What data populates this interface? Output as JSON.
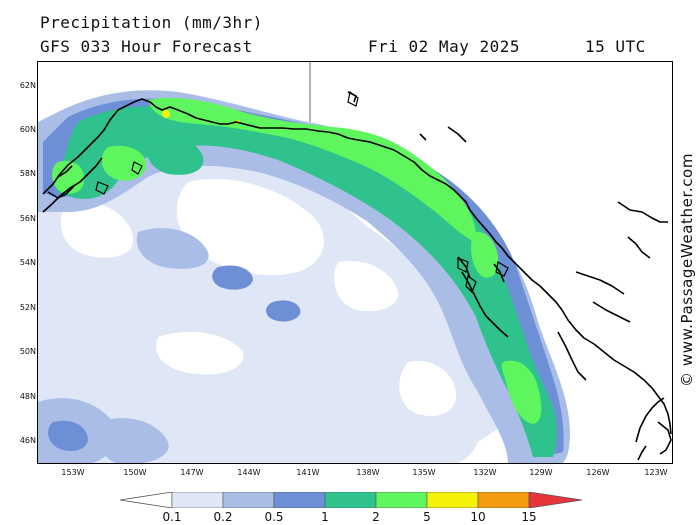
{
  "header": {
    "title": "Precipitation (mm/3hr)",
    "subtitle": "GFS 033 Hour Forecast",
    "date": "Fri 02 May 2025",
    "time": "15 UTC"
  },
  "credit": "© www.PassageWeather.com",
  "axes": {
    "lat_labels": [
      "62N",
      "60N",
      "58N",
      "56N",
      "54N",
      "52N",
      "50N",
      "48N",
      "46N"
    ],
    "lon_labels": [
      "153W",
      "150W",
      "147W",
      "144W",
      "141W",
      "138W",
      "135W",
      "132W",
      "129W",
      "126W",
      "123W"
    ]
  },
  "legend": {
    "values": [
      "0.1",
      "0.2",
      "0.5",
      "1",
      "2",
      "5",
      "10",
      "15"
    ],
    "colors": [
      "#ffffff",
      "#dfe7f7",
      "#a9bde6",
      "#6c8fd6",
      "#2fc28c",
      "#5ff55f",
      "#f6f10a",
      "#f39a10",
      "#e8343c"
    ]
  },
  "colors": {
    "coast": "#000000",
    "ocean": "#ffffff",
    "precip_0_1": "#dfe7f7",
    "precip_0_2": "#a9bde6",
    "precip_0_5": "#6c8fd6",
    "precip_1": "#2fc28c",
    "precip_2": "#5ff55f",
    "precip_5": "#f6f10a"
  }
}
